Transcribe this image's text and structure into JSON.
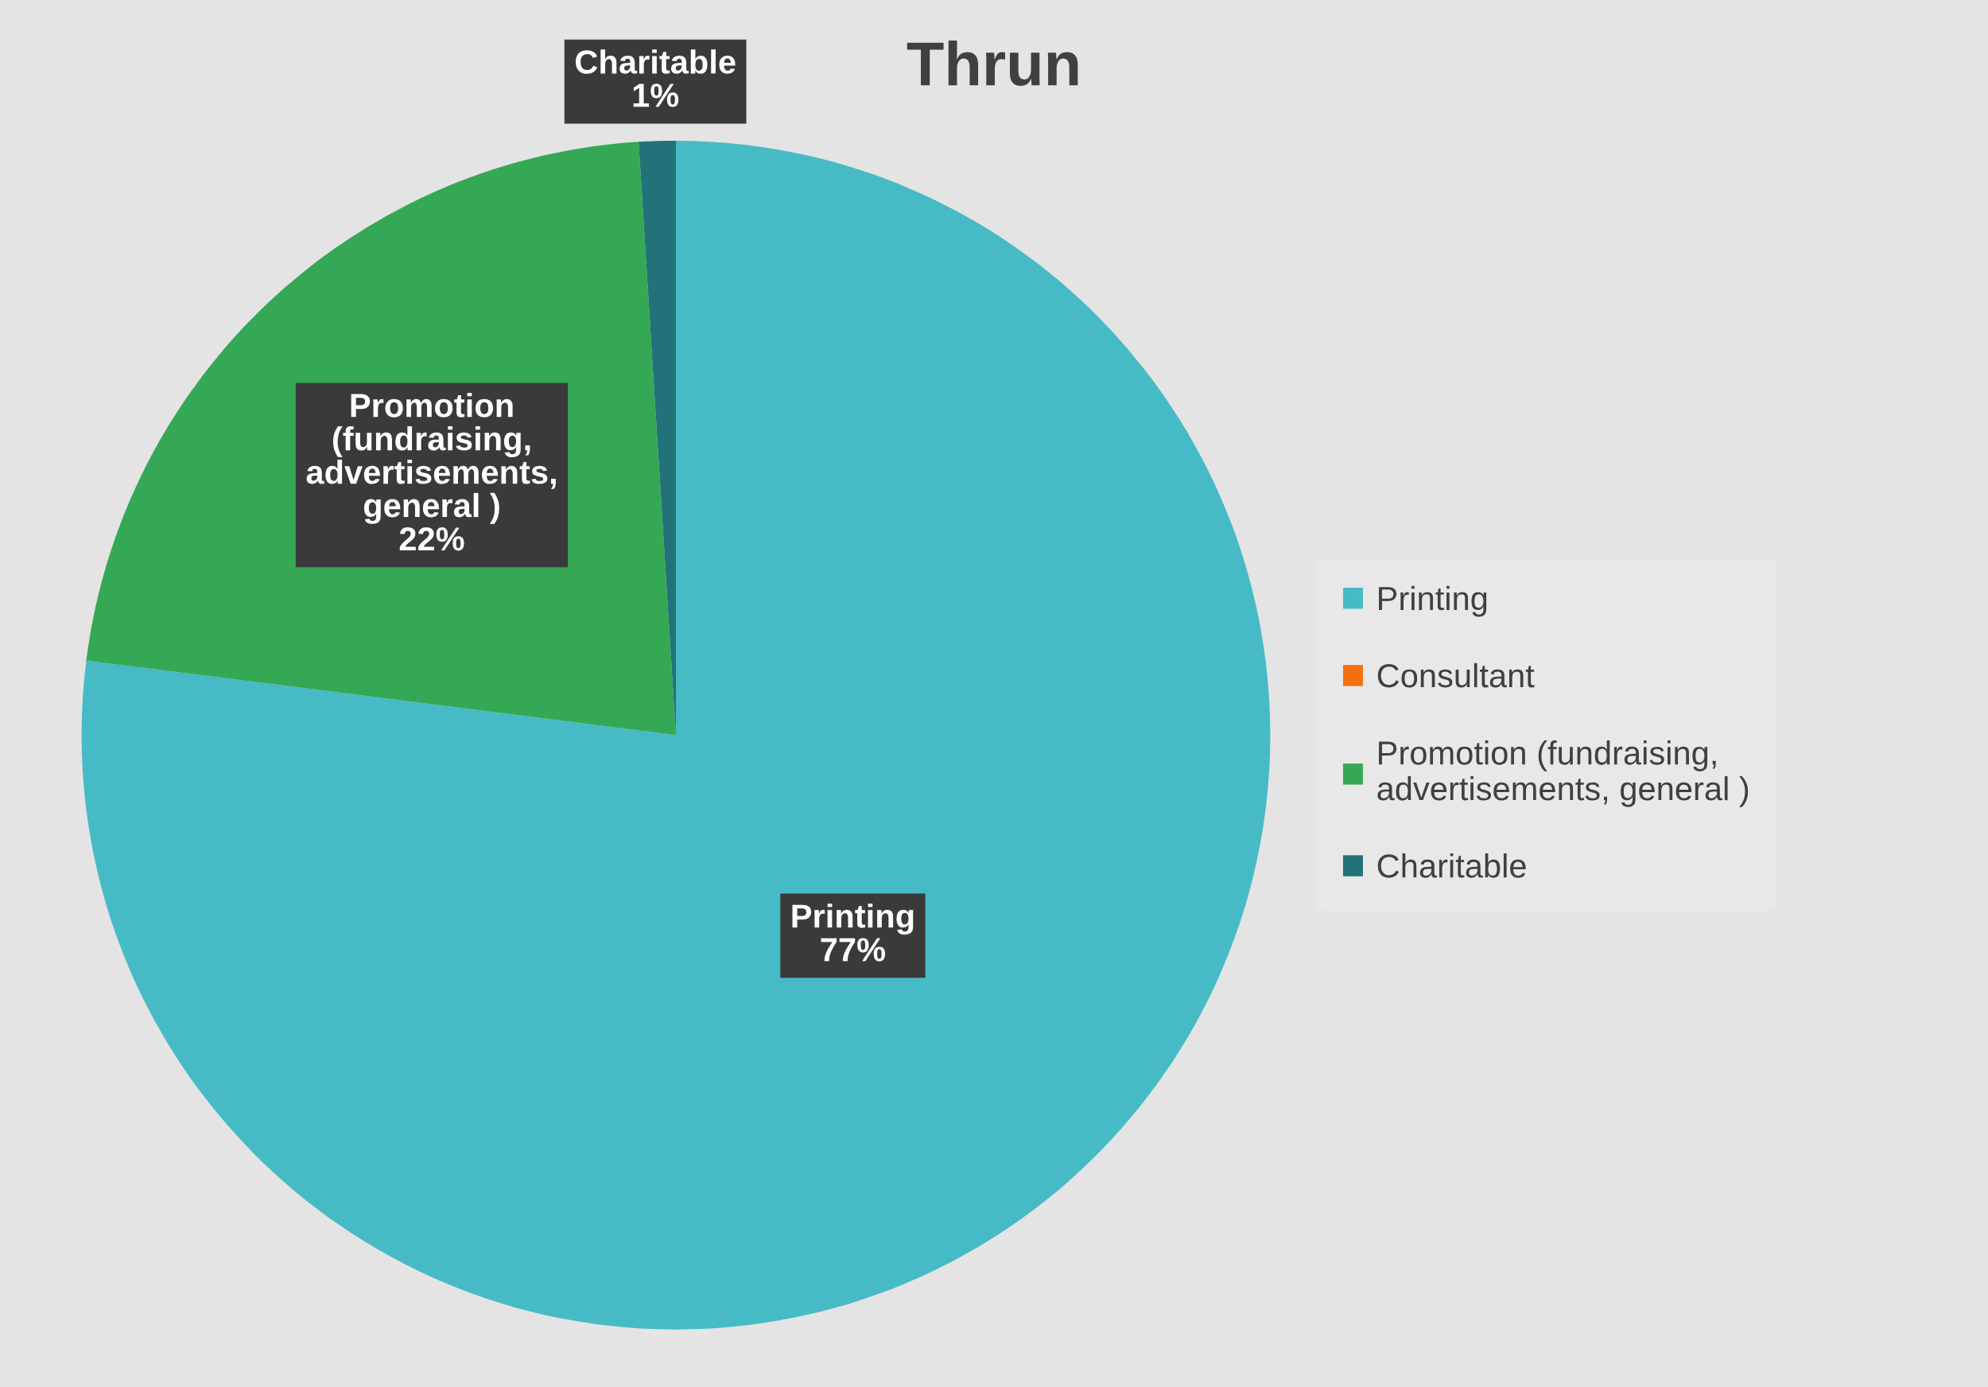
{
  "chart_data": {
    "type": "pie",
    "title": "Thrun",
    "categories": [
      "Printing",
      "Consultant",
      "Promotion (fundraising, advertisements, general )",
      "Charitable"
    ],
    "values": [
      77,
      0,
      22,
      1
    ],
    "colors": [
      "#46bbc6",
      "#f7700f",
      "#35a855",
      "#217379"
    ],
    "value_labels": [
      "77%",
      null,
      "22%",
      "1%"
    ],
    "legend": "right"
  }
}
